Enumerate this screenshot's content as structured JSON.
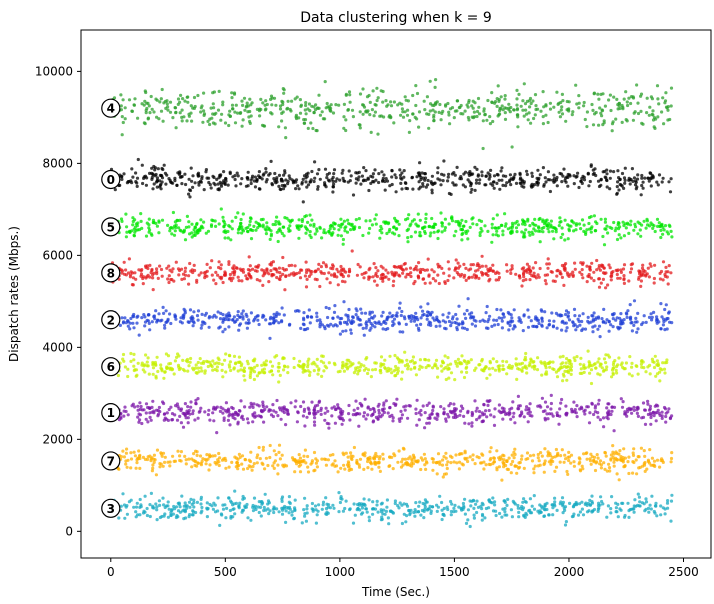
{
  "chart_data": {
    "type": "scatter",
    "title": "Data clustering when k = 9",
    "xlabel": "Time (Sec.)",
    "ylabel": "Dispatch rates (Mbps.)",
    "xlim": [
      -130,
      2620
    ],
    "ylim": [
      -580,
      10900
    ],
    "x_ticks": [
      0,
      500,
      1000,
      1500,
      2000,
      2500
    ],
    "y_ticks": [
      0,
      2000,
      4000,
      6000,
      8000,
      10000
    ],
    "x_tick_labels": [
      "0",
      "500",
      "1000",
      "1500",
      "2000",
      "2500"
    ],
    "y_tick_labels": [
      "0",
      "2000",
      "4000",
      "6000",
      "8000",
      "10000"
    ],
    "grid": false,
    "point_x_range": [
      0,
      2450
    ],
    "clusters": [
      {
        "label": "4",
        "center_y": 9200,
        "spread": 380,
        "color": "#2ca02c"
      },
      {
        "label": "0",
        "center_y": 7650,
        "spread": 230,
        "color": "#000000"
      },
      {
        "label": "5",
        "center_y": 6620,
        "spread": 220,
        "color": "#00e600"
      },
      {
        "label": "8",
        "center_y": 5620,
        "spread": 230,
        "color": "#e31a1c"
      },
      {
        "label": "2",
        "center_y": 4600,
        "spread": 230,
        "color": "#1f3fd6"
      },
      {
        "label": "6",
        "center_y": 3580,
        "spread": 220,
        "color": "#c6f000"
      },
      {
        "label": "1",
        "center_y": 2580,
        "spread": 230,
        "color": "#7b16a8"
      },
      {
        "label": "7",
        "center_y": 1530,
        "spread": 230,
        "color": "#ffb000"
      },
      {
        "label": "3",
        "center_y": 500,
        "spread": 230,
        "color": "#17a9c1"
      }
    ]
  }
}
